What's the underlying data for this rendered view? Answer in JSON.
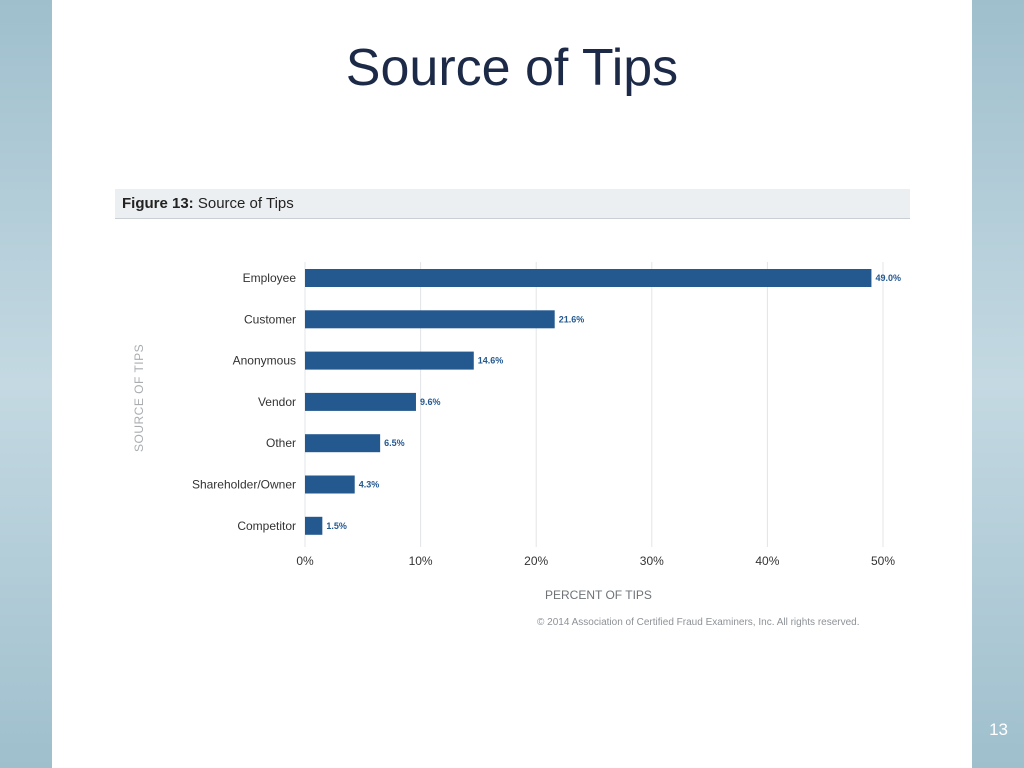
{
  "slide": {
    "title": "Source of Tips",
    "page_number": "13"
  },
  "figure": {
    "number": "Figure 13:",
    "title": "Source of Tips",
    "copyright": "© 2014 Association of Certified Fraud Examiners, Inc. All rights reserved."
  },
  "colors": {
    "bar": "#245990",
    "title": "#1c2a48",
    "band": "#a9c6d3"
  },
  "chart_data": {
    "type": "bar",
    "orientation": "horizontal",
    "title": "Source of Tips",
    "xlabel": "PERCENT OF TIPS",
    "ylabel": "SOURCE OF TIPS",
    "categories": [
      "Employee",
      "Customer",
      "Anonymous",
      "Vendor",
      "Other",
      "Shareholder/Owner",
      "Competitor"
    ],
    "values": [
      49.0,
      21.6,
      14.6,
      9.6,
      6.5,
      4.3,
      1.5
    ],
    "value_labels": [
      "49.0%",
      "21.6%",
      "14.6%",
      "9.6%",
      "6.5%",
      "4.3%",
      "1.5%"
    ],
    "xlim": [
      0,
      50
    ],
    "xticks": [
      0,
      10,
      20,
      30,
      40,
      50
    ],
    "xtick_labels": [
      "0%",
      "10%",
      "20%",
      "30%",
      "40%",
      "50%"
    ],
    "grid": true,
    "legend": "none"
  }
}
